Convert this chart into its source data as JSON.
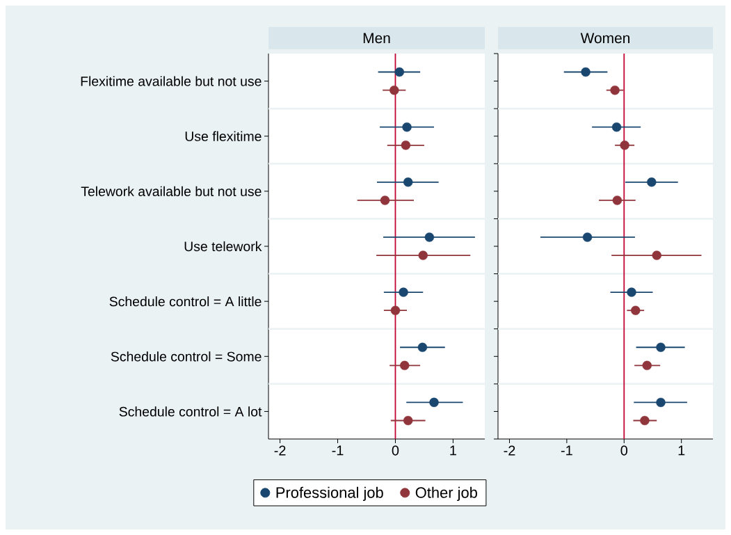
{
  "chart_data": [
    {
      "type": "scatter",
      "title": "Men",
      "orientation": "horizontal",
      "categories": [
        "Flexitime available but not use",
        "Use flexitime",
        "Telework available but not use",
        "Use telework",
        "Schedule control = A little",
        "Schedule control = Some",
        "Schedule control = A lot"
      ],
      "xlim": [
        -2.2,
        1.55
      ],
      "xticks": [
        -2,
        -1,
        0,
        1
      ],
      "grid": "y",
      "legend": "bottom",
      "marker": "circle",
      "ref_lines": [
        {
          "axis": "x",
          "value": 0,
          "color": "#c10534"
        }
      ],
      "series": [
        {
          "name": "Professional job",
          "color": "#1a476f",
          "values": [
            0.07,
            0.2,
            0.22,
            0.59,
            0.14,
            0.47,
            0.67
          ],
          "errors": [
            [
              -0.3,
              0.43
            ],
            [
              -0.27,
              0.67
            ],
            [
              -0.32,
              0.75
            ],
            [
              -0.21,
              1.38
            ],
            [
              -0.2,
              0.48
            ],
            [
              0.08,
              0.86
            ],
            [
              0.19,
              1.17
            ]
          ]
        },
        {
          "name": "Other job",
          "color": "#90353b",
          "values": [
            -0.02,
            0.18,
            -0.18,
            0.48,
            0.0,
            0.16,
            0.22
          ],
          "errors": [
            [
              -0.22,
              0.18
            ],
            [
              -0.14,
              0.5
            ],
            [
              -0.66,
              0.32
            ],
            [
              -0.33,
              1.3
            ],
            [
              -0.2,
              0.2
            ],
            [
              -0.1,
              0.43
            ],
            [
              -0.08,
              0.52
            ]
          ]
        }
      ]
    },
    {
      "type": "scatter",
      "title": "Women",
      "orientation": "horizontal",
      "categories": [
        null,
        null,
        null,
        null,
        null,
        null,
        null
      ],
      "xlim": [
        -2.2,
        1.55
      ],
      "xticks": [
        -2,
        -1,
        0,
        1
      ],
      "grid": "y",
      "marker": "circle",
      "tick_labels": "x",
      "ref_lines": [
        {
          "axis": "x",
          "value": 0,
          "color": "#c10534"
        }
      ],
      "series": [
        {
          "color": "#1a476f",
          "values": [
            -0.67,
            -0.13,
            0.48,
            -0.64,
            0.13,
            0.64,
            0.64
          ],
          "errors": [
            [
              -1.05,
              -0.29
            ],
            [
              -0.56,
              0.29
            ],
            [
              0.02,
              0.94
            ],
            [
              -1.46,
              0.19
            ],
            [
              -0.24,
              0.5
            ],
            [
              0.21,
              1.06
            ],
            [
              0.17,
              1.1
            ]
          ]
        },
        {
          "color": "#90353b",
          "values": [
            -0.16,
            0.01,
            -0.12,
            0.57,
            0.2,
            0.4,
            0.36
          ],
          "errors": [
            [
              -0.31,
              -0.01
            ],
            [
              -0.16,
              0.18
            ],
            [
              -0.44,
              0.2
            ],
            [
              -0.22,
              1.35
            ],
            [
              0.05,
              0.35
            ],
            [
              0.18,
              0.63
            ],
            [
              0.16,
              0.57
            ]
          ]
        }
      ]
    }
  ]
}
